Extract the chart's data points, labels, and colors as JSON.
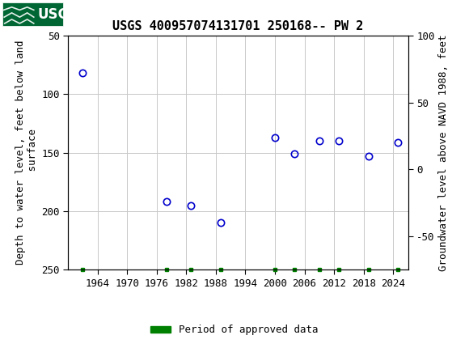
{
  "title": "USGS 400957074131701 250168-- PW 2",
  "ylabel_left": "Depth to water level, feet below land\n surface",
  "ylabel_right": "Groundwater level above NAVD 1988, feet",
  "xlim": [
    1958,
    2027
  ],
  "ylim_left": [
    250,
    50
  ],
  "ylim_right": [
    -75,
    100
  ],
  "xticks": [
    1964,
    1970,
    1976,
    1982,
    1988,
    1994,
    2000,
    2006,
    2012,
    2018,
    2024
  ],
  "yticks_left": [
    50,
    100,
    150,
    200,
    250
  ],
  "yticks_right": [
    100,
    50,
    0,
    -50
  ],
  "data_x": [
    1961,
    1978,
    1983,
    1989,
    2000,
    2004,
    2009,
    2013,
    2019,
    2025
  ],
  "data_y": [
    82,
    192,
    195,
    210,
    137,
    151,
    140,
    140,
    153,
    141
  ],
  "green_x": [
    1961,
    1978,
    1983,
    1989,
    2000,
    2004,
    2009,
    2013,
    2019,
    2025
  ],
  "marker_color": "#0000cc",
  "marker_size": 6,
  "grid_color": "#c8c8c8",
  "bg_color": "#ffffff",
  "header_color": "#006633",
  "legend_label": "Period of approved data",
  "legend_color": "#008000",
  "title_fontsize": 11,
  "axis_fontsize": 9,
  "tick_fontsize": 9,
  "font_family": "monospace"
}
